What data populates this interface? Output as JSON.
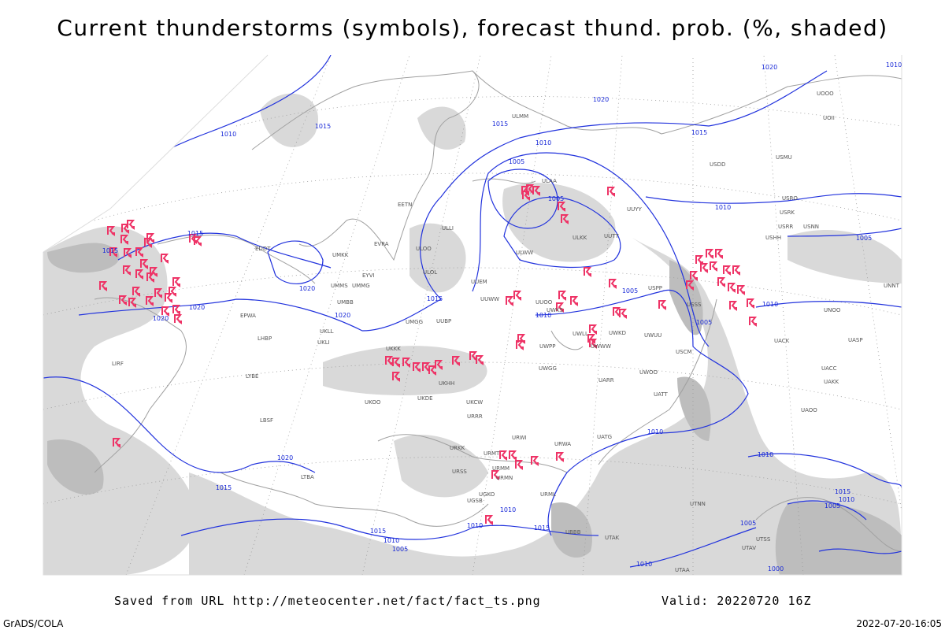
{
  "header": {
    "title": "Current thunderstorms (symbols), forecast thund. prob. (%, shaded)"
  },
  "footer": {
    "source": "Saved from URL http://meteocenter.net/fact/fact_ts.png",
    "valid": "Valid: 20220720 16Z",
    "credit": "GrADS/COLA",
    "timestamp": "2022-07-20-16:05"
  },
  "map": {
    "isobar_labels": [
      "1015",
      "1010",
      "1015",
      "1015",
      "1020",
      "1020",
      "1020",
      "1020",
      "1015",
      "1005",
      "1010",
      "1015",
      "1020",
      "1015",
      "1010",
      "1005",
      "1005",
      "1010",
      "1005",
      "1010",
      "1005",
      "1020",
      "1010",
      "1010",
      "1010",
      "1020",
      "1015",
      "1015",
      "1010",
      "1005",
      "1010",
      "1015",
      "1010",
      "1005",
      "1015",
      "1010",
      "1005",
      "1010",
      "1000"
    ],
    "stations": [
      "ULAA",
      "ULWW",
      "ULKK",
      "UUYY",
      "UUTT",
      "UUEM",
      "UUWW",
      "UUOO",
      "UWKS",
      "UWPP",
      "UWLL",
      "UWWW",
      "UWKD",
      "UWUU",
      "UWGG",
      "UARR",
      "UWOO",
      "UATT",
      "UATG",
      "URWA",
      "URWI",
      "URMT",
      "URMM",
      "URMN",
      "URML",
      "UGKO",
      "UGSB",
      "UBBB",
      "UTAK",
      "UTNN",
      "UMMS",
      "UMMG",
      "EYVI",
      "EVRA",
      "UMKK",
      "EETN",
      "ULLI",
      "ULOO",
      "ULOL",
      "UMBB",
      "UKLL",
      "UKLI",
      "UKKK",
      "UKHH",
      "UKOO",
      "UKDE",
      "UKCW",
      "URRR",
      "URKK",
      "URSS",
      "UUBP",
      "UMGG",
      "EPWA",
      "EDDT",
      "LHBP",
      "LYBE",
      "LBSF",
      "LIRF",
      "LTBA",
      "USSS",
      "USPP",
      "USCM",
      "UACC",
      "UAKK",
      "UAOO",
      "USRR",
      "USNN",
      "USRK",
      "USRO",
      "USMU",
      "USDD",
      "USHH",
      "UNNT",
      "UNBB",
      "UNOO",
      "UACK",
      "UASP",
      "UTSS",
      "UTAV",
      "UTAA",
      "ULMM",
      "UOOO",
      "UOII"
    ]
  }
}
